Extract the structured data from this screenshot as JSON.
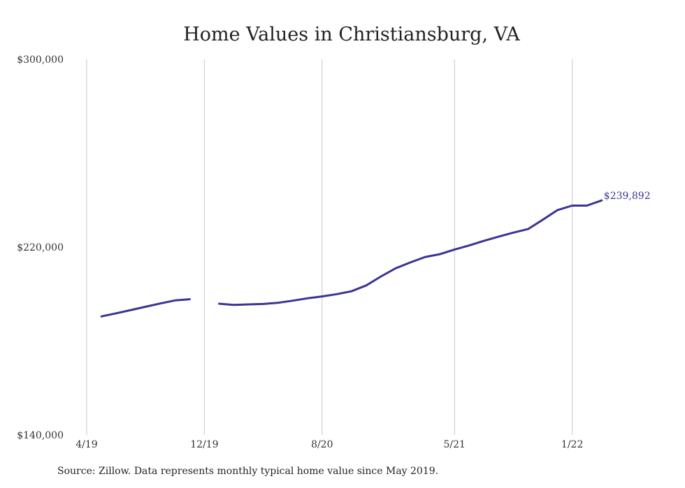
{
  "chart_data": {
    "type": "line",
    "title": "Home Values in Christiansburg, VA",
    "xlabel": "",
    "ylabel": "",
    "ylim": [
      140000,
      300000
    ],
    "yticks": [
      "$300,000",
      "$220,000",
      "$140,000"
    ],
    "ytick_values": [
      300000,
      220000,
      140000
    ],
    "xticks": [
      "4/19",
      "12/19",
      "8/20",
      "5/21",
      "1/22"
    ],
    "xtick_dates": [
      "2019-04",
      "2019-12",
      "2020-08",
      "2021-05",
      "2022-01"
    ],
    "grid": "vertical",
    "legend": "none",
    "line_color": "#3a3594",
    "series": [
      {
        "segments": [
          {
            "x": [
              "2019-05",
              "2019-06",
              "2019-07",
              "2019-08",
              "2019-09",
              "2019-10",
              "2019-11"
            ],
            "values": [
              190500,
              191800,
              193200,
              194600,
              196000,
              197300,
              197800
            ]
          },
          {
            "x": [
              "2020-01",
              "2020-02",
              "2020-03",
              "2020-04",
              "2020-05",
              "2020-06",
              "2020-07",
              "2020-08",
              "2020-09",
              "2020-10",
              "2020-11",
              "2020-12",
              "2021-01",
              "2021-02",
              "2021-03",
              "2021-04",
              "2021-05",
              "2021-06",
              "2021-07",
              "2021-08",
              "2021-09",
              "2021-10",
              "2021-11",
              "2021-12",
              "2022-01",
              "2022-02",
              "2022-03"
            ],
            "values": [
              195900,
              195400,
              195600,
              195800,
              196300,
              197200,
              198200,
              199000,
              200000,
              201200,
              203700,
              207500,
              211000,
              213500,
              215800,
              217000,
              219000,
              220700,
              222700,
              224500,
              226200,
              227700,
              231700,
              235800,
              237700,
              237700,
              239892
            ]
          }
        ]
      }
    ],
    "end_label": "$239,892"
  },
  "source": "Source: Zillow. Data represents monthly typical home value since May 2019."
}
